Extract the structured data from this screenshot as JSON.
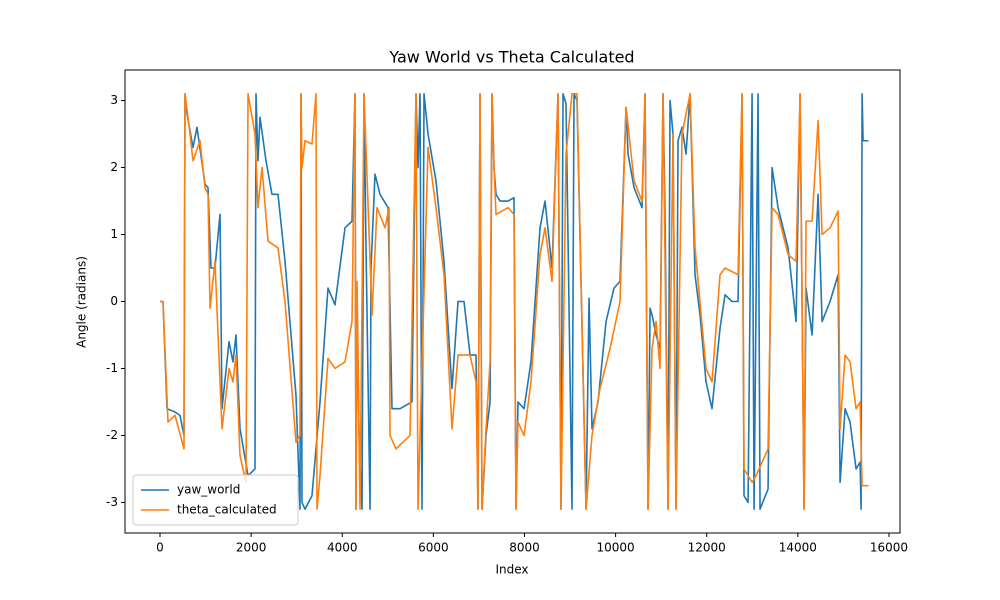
{
  "chart_data": {
    "type": "line",
    "title": "Yaw World vs Theta Calculated",
    "x_label": "Index",
    "y_label": "Angle (radians)",
    "xlim": [
      -768,
      16242
    ],
    "ylim": [
      -3.456,
      3.456
    ],
    "xticks": [
      0,
      2000,
      4000,
      6000,
      8000,
      10000,
      12000,
      14000,
      16000
    ],
    "yticks": [
      -3,
      -2,
      -1,
      0,
      1,
      2,
      3
    ],
    "legend": "lower left",
    "series": [
      {
        "name": "yaw_world",
        "color": "#1f77b4",
        "x": [
          0,
          66,
          154,
          329,
          439,
          527,
          549,
          593,
          724,
          812,
          988,
          1054,
          1119,
          1207,
          1317,
          1361,
          1515,
          1602,
          1668,
          1756,
          1932,
          2085,
          2107,
          2151,
          2195,
          2327,
          2458,
          2590,
          2744,
          2810,
          2985,
          3073,
          3095,
          3117,
          3183,
          3336,
          3512,
          3688,
          3841,
          4061,
          4214,
          4280,
          4302,
          4324,
          4368,
          4434,
          4478,
          4522,
          4610,
          4631,
          4719,
          4829,
          5005,
          5092,
          5268,
          5531,
          5619,
          5663,
          5707,
          5751,
          5795,
          5883,
          6058,
          6234,
          6409,
          6541,
          6673,
          6805,
          6936,
          6980,
          7024,
          7068,
          7156,
          7244,
          7287,
          7331,
          7375,
          7463,
          7639,
          7770,
          7814,
          7858,
          7990,
          8143,
          8341,
          8451,
          8604,
          8736,
          8802,
          8846,
          8912,
          9043,
          9087,
          9153,
          9351,
          9417,
          9482,
          9614,
          9790,
          9965,
          10097,
          10229,
          10273,
          10405,
          10580,
          10646,
          10712,
          10756,
          10800,
          10888,
          10975,
          11041,
          11085,
          11151,
          11195,
          11260,
          11326,
          11370,
          11458,
          11546,
          11634,
          11743,
          11853,
          11985,
          12116,
          12292,
          12402,
          12555,
          12687,
          12775,
          12819,
          12907,
          12995,
          13039,
          13126,
          13170,
          13346,
          13434,
          13566,
          13785,
          13961,
          14049,
          14136,
          14180,
          14312,
          14444,
          14532,
          14707,
          14883,
          14927,
          15037,
          15146,
          15278,
          15366,
          15388,
          15410,
          15432,
          15550
        ],
        "values": [
          0,
          0,
          -1.6,
          -1.65,
          -1.7,
          -2.0,
          3.1,
          2.8,
          2.3,
          2.6,
          1.75,
          1.7,
          0.5,
          0.5,
          1.3,
          -1.6,
          -0.6,
          -0.9,
          -0.5,
          -1.9,
          -2.6,
          -2.5,
          3.1,
          2.1,
          2.75,
          2.1,
          1.6,
          1.6,
          0.6,
          0.05,
          -1.4,
          -3.1,
          3.1,
          -3.0,
          -3.1,
          -2.9,
          -1.5,
          0.2,
          -0.05,
          1.1,
          1.2,
          3.1,
          -3.1,
          0.2,
          -2.0,
          -3.1,
          3.1,
          0.8,
          -3.1,
          0.5,
          1.9,
          1.6,
          1.4,
          -1.6,
          -1.6,
          -1.5,
          3.1,
          2.0,
          3.1,
          -3.1,
          3.1,
          2.5,
          1.8,
          0.6,
          -1.3,
          0.0,
          0.0,
          -0.8,
          -0.8,
          -3.1,
          3.1,
          -3.1,
          -2.0,
          -1.5,
          3.1,
          2.0,
          1.6,
          1.5,
          1.5,
          1.55,
          -3.1,
          -1.5,
          -1.6,
          -0.9,
          1.1,
          1.5,
          0.5,
          3.1,
          -3.1,
          3.1,
          2.95,
          -3.1,
          3.1,
          3.0,
          -3.1,
          0.05,
          -1.9,
          -1.5,
          -0.3,
          0.2,
          0.3,
          2.9,
          2.2,
          1.7,
          1.4,
          3.1,
          -3.1,
          -0.1,
          -0.2,
          -0.5,
          -0.7,
          3.1,
          1.3,
          -3.1,
          3.0,
          2.5,
          -3.1,
          2.4,
          2.6,
          2.2,
          3.1,
          0.4,
          -0.2,
          -1.2,
          -1.6,
          -0.4,
          0.1,
          0.0,
          0.0,
          3.1,
          -2.9,
          -3.0,
          3.1,
          -3.1,
          3.1,
          -3.1,
          -2.8,
          2.0,
          1.4,
          0.8,
          -0.3,
          3.1,
          -3.1,
          0.2,
          -0.5,
          1.6,
          -0.3,
          0.0,
          0.4,
          -2.7,
          -1.6,
          -1.8,
          -2.5,
          -2.4,
          -3.1,
          3.1,
          2.4,
          2.4
        ]
      },
      {
        "name": "theta_calculated",
        "color": "#ff7f0e",
        "x": [
          0,
          66,
          176,
          329,
          527,
          549,
          659,
          724,
          878,
          988,
          1054,
          1098,
          1207,
          1361,
          1515,
          1602,
          1668,
          1756,
          1888,
          1932,
          2085,
          2151,
          2239,
          2371,
          2590,
          2744,
          2985,
          3073,
          3095,
          3117,
          3183,
          3336,
          3424,
          3446,
          3512,
          3688,
          3841,
          4061,
          4214,
          4280,
          4302,
          4324,
          4390,
          4478,
          4654,
          4763,
          4939,
          5027,
          5049,
          5180,
          5488,
          5619,
          5663,
          5883,
          6058,
          6234,
          6409,
          6541,
          6805,
          6936,
          6980,
          7024,
          7068,
          7156,
          7244,
          7287,
          7331,
          7375,
          7639,
          7770,
          7814,
          7858,
          7990,
          8143,
          8341,
          8451,
          8604,
          8736,
          8802,
          8912,
          9043,
          9153,
          9351,
          9482,
          9658,
          9878,
          10097,
          10229,
          10405,
          10580,
          10646,
          10712,
          10800,
          10888,
          10975,
          11041,
          11151,
          11260,
          11326,
          11458,
          11634,
          11743,
          11985,
          12116,
          12292,
          12402,
          12687,
          12775,
          12819,
          12995,
          13083,
          13346,
          13434,
          13566,
          13785,
          13961,
          14049,
          14136,
          14180,
          14312,
          14444,
          14532,
          14707,
          14883,
          14927,
          15037,
          15146,
          15278,
          15366,
          15410,
          15550
        ],
        "values": [
          0,
          0,
          -1.8,
          -1.7,
          -2.2,
          3.1,
          2.5,
          2.1,
          2.4,
          1.7,
          1.6,
          -0.1,
          0.6,
          -1.9,
          -1.0,
          -1.2,
          -0.8,
          -2.3,
          -2.7,
          3.1,
          2.5,
          1.4,
          2.0,
          0.9,
          0.8,
          0.0,
          -2.1,
          -2.0,
          3.1,
          2.0,
          2.4,
          2.35,
          3.1,
          -3.1,
          -2.6,
          -0.85,
          -1.0,
          -0.9,
          -0.3,
          3.1,
          -3.1,
          0.3,
          -3.1,
          3.1,
          -0.2,
          1.4,
          1.1,
          1.4,
          -2.0,
          -2.2,
          -2.0,
          3.1,
          -3.1,
          2.3,
          1.4,
          0.4,
          -1.9,
          -0.8,
          -0.8,
          -1.2,
          -3.1,
          3.1,
          -3.1,
          -1.9,
          -0.9,
          3.1,
          2.0,
          1.3,
          1.4,
          1.3,
          -3.1,
          -1.8,
          -2.0,
          -1.2,
          0.7,
          1.1,
          0.3,
          3.1,
          -3.1,
          2.2,
          3.1,
          3.1,
          -3.1,
          -2.0,
          -1.3,
          -0.7,
          0.0,
          2.9,
          1.8,
          1.5,
          3.1,
          -3.1,
          -0.7,
          -0.3,
          -1.0,
          3.1,
          -3.1,
          2.5,
          -3.1,
          2.5,
          3.1,
          0.8,
          -1.0,
          -1.2,
          0.4,
          0.5,
          0.4,
          3.1,
          -2.5,
          -2.7,
          -2.6,
          -2.2,
          1.4,
          1.3,
          0.7,
          0.6,
          3.1,
          -3.1,
          1.2,
          1.2,
          2.7,
          1.0,
          1.1,
          1.35,
          -1.9,
          -0.8,
          -0.9,
          -1.6,
          -1.5,
          -2.75,
          -2.75
        ]
      }
    ]
  }
}
